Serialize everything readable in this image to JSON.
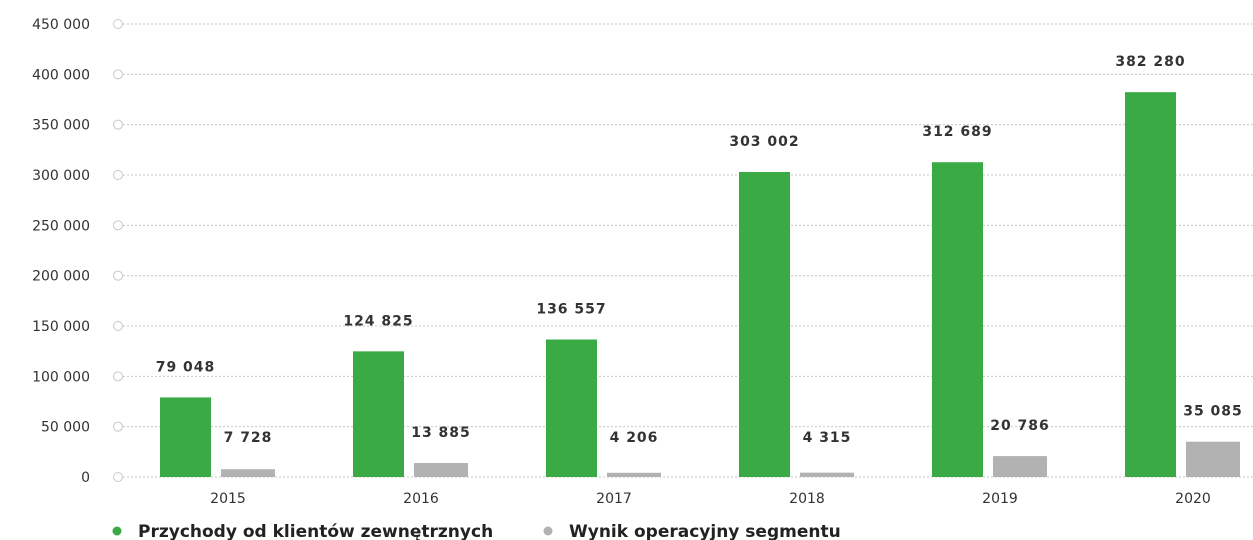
{
  "chart_data": {
    "type": "bar",
    "categories": [
      "2015",
      "2016",
      "2017",
      "2018",
      "2019",
      "2020"
    ],
    "series": [
      {
        "name": "Przychody od klientów zewnętrznych",
        "values": [
          79048,
          124825,
          136557,
          303002,
          312689,
          382280
        ],
        "labels": [
          "79 048",
          "124 825",
          "136 557",
          "303 002",
          "312 689",
          "382 280"
        ],
        "color": "#3aaa44"
      },
      {
        "name": "Wynik operacyjny segmentu",
        "values": [
          7728,
          13885,
          4206,
          4315,
          20786,
          35085
        ],
        "labels": [
          "7 728",
          "13 885",
          "4 206",
          "4 315",
          "20 786",
          "35 085"
        ],
        "color": "#b2b2b2"
      }
    ],
    "yticks": [
      "0",
      "50 000",
      "100 000",
      "150 000",
      "200 000",
      "250 000",
      "300 000",
      "350 000",
      "400 000",
      "450 000"
    ],
    "ytick_values": [
      0,
      50000,
      100000,
      150000,
      200000,
      250000,
      300000,
      350000,
      400000,
      450000
    ],
    "ylim": [
      0,
      450000
    ],
    "grid": true,
    "legend_position": "bottom-left",
    "title": "",
    "xlabel": "",
    "ylabel": ""
  }
}
